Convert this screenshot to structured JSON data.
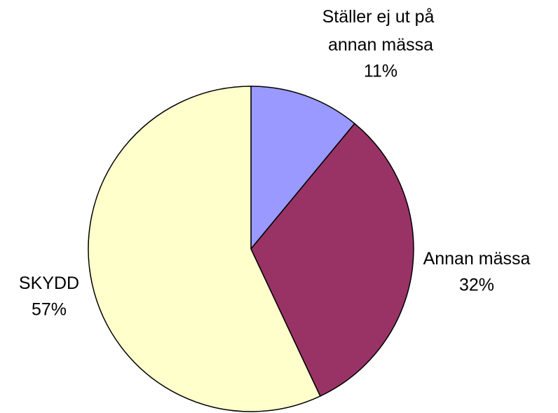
{
  "chart_data": {
    "type": "pie",
    "categories": [
      "Ställer ej ut på annan mässa",
      "Annan mässa",
      "SKYDD"
    ],
    "values": [
      11,
      32,
      57
    ],
    "value_labels": [
      "11%",
      "32%",
      "57%"
    ],
    "colors": [
      "#9999ff",
      "#993366",
      "#ffffcc"
    ]
  }
}
